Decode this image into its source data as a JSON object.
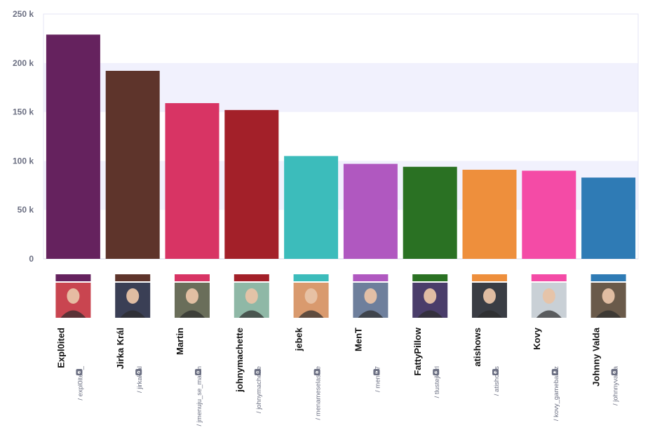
{
  "chart_data": {
    "type": "bar",
    "categories": [
      "Expl0ited",
      "Jirka Král",
      "Martin",
      "johnymachette",
      "jebek",
      "MenT",
      "FattyPillow",
      "atishows",
      "Kovy",
      "Johnny Valda"
    ],
    "handles": [
      "/ expl0ited_",
      "/ jirkakral",
      "/ jmenuju_se_martin",
      "/ johnymachette",
      "/ menameselassie",
      "/ ment97",
      "/ tlustejkarl",
      "/ atishows",
      "/ kovy_gameballcz",
      "/ johnnyvalda"
    ],
    "values": [
      229000,
      192000,
      159000,
      152000,
      105000,
      97000,
      94000,
      91000,
      90000,
      83000
    ],
    "colors": [
      "#65225e",
      "#5e342b",
      "#d83464",
      "#a32029",
      "#3cbcbb",
      "#b058c0",
      "#2a7123",
      "#ee8f3c",
      "#f44ba6",
      "#2f7bb5"
    ],
    "avatar_colors": [
      "#c94550",
      "#3a3f55",
      "#6a6e5a",
      "#8fb8a6",
      "#d99a6e",
      "#6e7f9c",
      "#4a3d6a",
      "#3a3d44",
      "#c9d0d6",
      "#6a5a4a"
    ],
    "ylim": [
      0,
      250000
    ],
    "yticks": [
      0,
      50000,
      100000,
      150000,
      200000,
      250000
    ],
    "ytick_labels": [
      "0",
      "50 k",
      "100 k",
      "150 k",
      "200 k",
      "250 k"
    ],
    "band_color": "#f1f1fd",
    "grid": true,
    "title": "",
    "xlabel": "",
    "ylabel": ""
  }
}
